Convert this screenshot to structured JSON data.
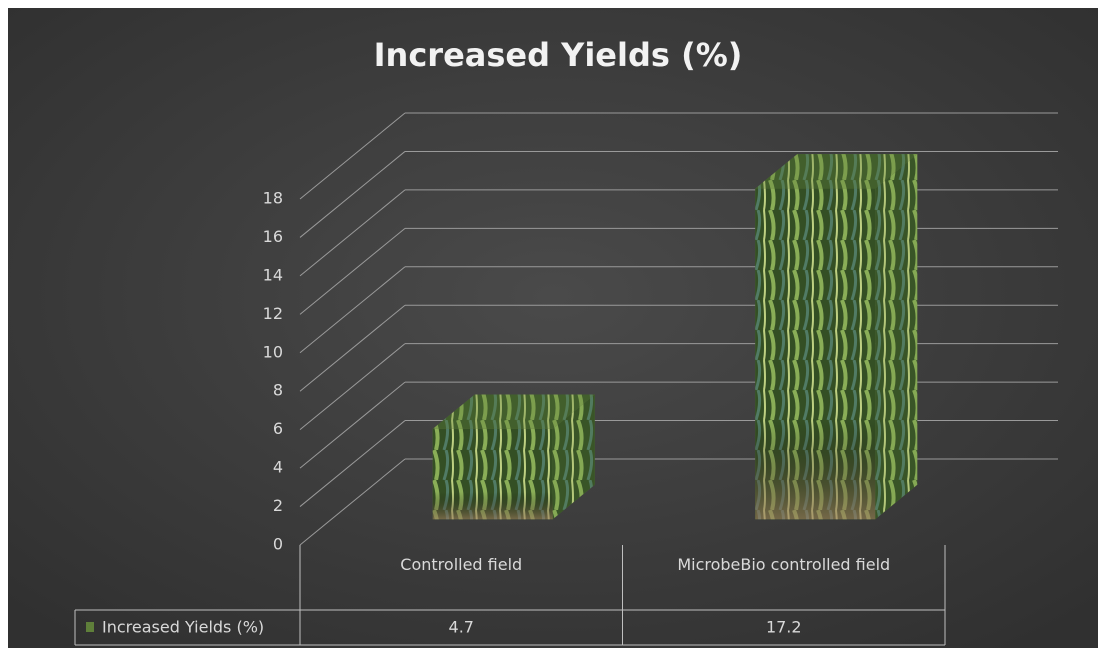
{
  "chart_data": {
    "type": "bar3d",
    "title": "Increased Yields (%)",
    "categories": [
      "Controlled field",
      "MicrobeBio controlled field"
    ],
    "series": [
      {
        "name": "Increased Yields (%)",
        "color": "#5f7f3a",
        "values": [
          4.7,
          17.2
        ]
      }
    ],
    "ylim": [
      0,
      18
    ],
    "yticks": [
      0,
      2,
      4,
      6,
      8,
      10,
      12,
      14,
      16,
      18
    ],
    "grid": true,
    "data_table": true
  }
}
